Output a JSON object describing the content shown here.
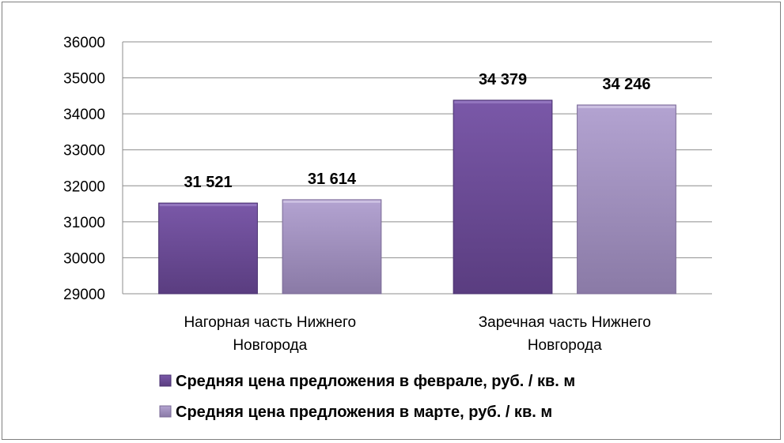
{
  "chart_data": {
    "type": "bar",
    "title": "",
    "xlabel": "",
    "ylabel": "",
    "categories": [
      [
        "Нагорная часть Нижнего",
        "Новгорода"
      ],
      [
        "Заречная часть Нижнего",
        "Новгорода"
      ]
    ],
    "series": [
      {
        "name": "Средняя цена предложения в феврале, руб. / кв. м",
        "values": [
          31521,
          34379
        ],
        "labels": [
          "31 521",
          "34 379"
        ],
        "color": "#6b4a94"
      },
      {
        "name": "Средняя цена предложения в марте, руб. / кв. м",
        "values": [
          31614,
          34246
        ],
        "labels": [
          "31 614",
          "34 246"
        ],
        "color": "#a593c4"
      }
    ],
    "ylim": [
      29000,
      36000
    ],
    "yticks": [
      29000,
      30000,
      31000,
      32000,
      33000,
      34000,
      35000,
      36000
    ],
    "grid": true,
    "legend_position": "bottom"
  }
}
